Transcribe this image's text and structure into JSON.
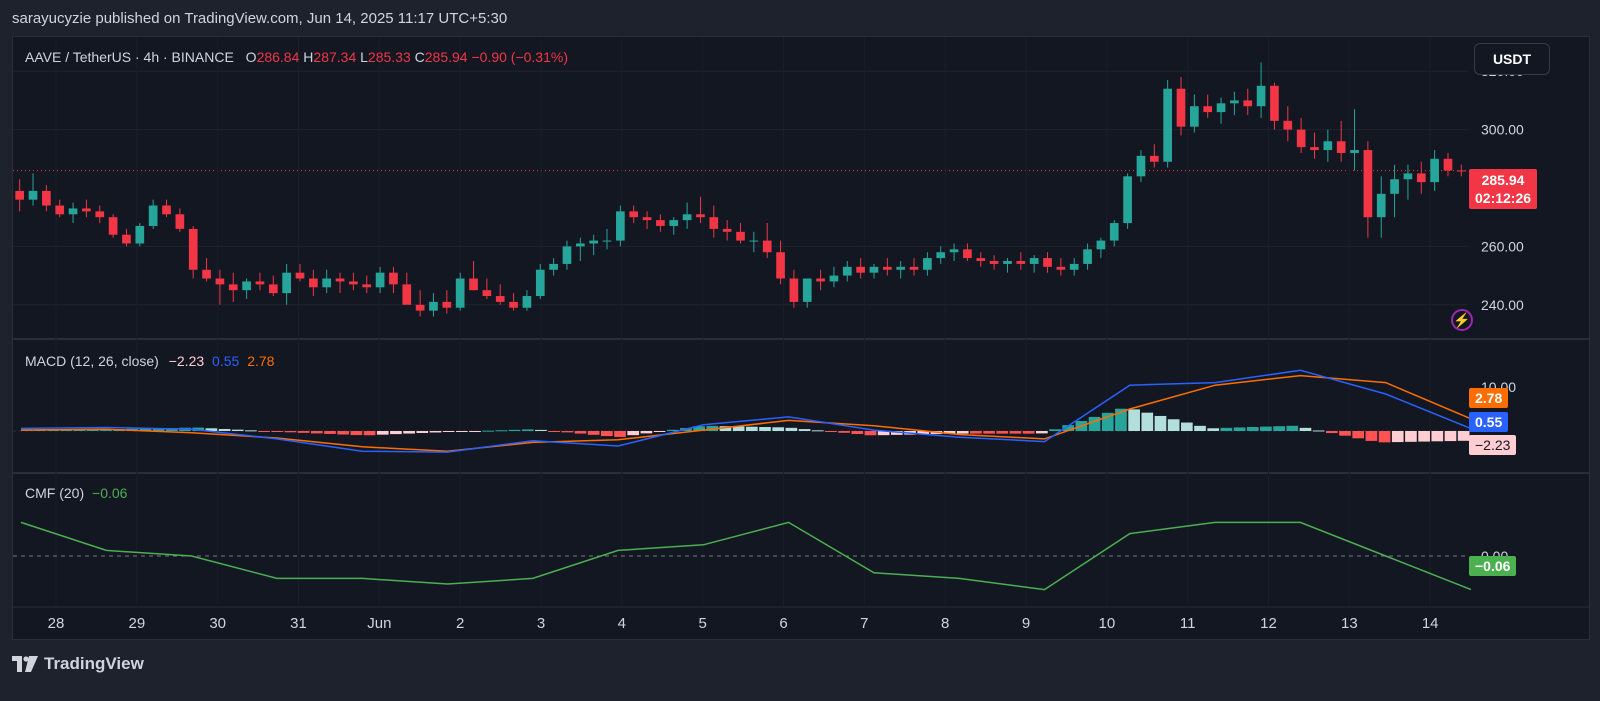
{
  "header": {
    "publisher_line": "sarayucyzie published on TradingView.com, Jun 14, 2025 11:17 UTC+5:30"
  },
  "legend": {
    "symbol": "AAVE / TetherUS · 4h · BINANCE",
    "open_label": "O",
    "open": "286.84",
    "high_label": "H",
    "high": "287.34",
    "low_label": "L",
    "low": "285.33",
    "close_label": "C",
    "close": "285.94",
    "change": "−0.90 (−0.31%)"
  },
  "currency_button": "USDT",
  "price_axis": [
    "320.00",
    "300.00",
    "260.00",
    "240.00"
  ],
  "price_tag": {
    "price": "285.94",
    "countdown": "02:12:26"
  },
  "macd": {
    "label": "MACD (12, 26, close)",
    "hist": "−2.23",
    "macd": "0.55",
    "signal": "2.78",
    "axis": [
      "10.00"
    ],
    "tags": {
      "signal": "2.78",
      "macd": "0.55",
      "hist": "−2.23"
    }
  },
  "cmf": {
    "label": "CMF (20)",
    "value": "−0.06",
    "axis": [
      "0.00"
    ],
    "tag": "−0.06"
  },
  "time_axis": [
    "28",
    "29",
    "30",
    "31",
    "Jun",
    "2",
    "3",
    "4",
    "5",
    "6",
    "7",
    "8",
    "9",
    "10",
    "11",
    "12",
    "13",
    "14"
  ],
  "footer": {
    "brand": "TradingView"
  },
  "colors": {
    "up": "#26a69a",
    "down": "#f23645",
    "macd_line": "#2962ff",
    "signal_line": "#ff6d00",
    "cmf_line": "#4caf50",
    "background": "#131722"
  },
  "chart_data": {
    "type": "candlestick",
    "symbol": "AAVE / TetherUS",
    "interval": "4h",
    "ylim": [
      230,
      330
    ],
    "candles": [
      [
        279,
        283,
        272,
        276
      ],
      [
        276,
        285,
        274,
        279
      ],
      [
        279,
        281,
        272,
        274
      ],
      [
        274,
        276,
        270,
        271
      ],
      [
        271,
        275,
        268,
        273
      ],
      [
        273,
        276,
        270,
        272
      ],
      [
        272,
        274,
        268,
        270
      ],
      [
        270,
        271,
        263,
        264
      ],
      [
        264,
        266,
        260,
        261
      ],
      [
        261,
        268,
        260,
        267
      ],
      [
        267,
        276,
        266,
        274
      ],
      [
        274,
        276,
        270,
        271
      ],
      [
        271,
        273,
        265,
        266
      ],
      [
        266,
        267,
        249,
        252
      ],
      [
        252,
        256,
        248,
        249
      ],
      [
        249,
        252,
        240,
        247
      ],
      [
        247,
        251,
        241,
        245
      ],
      [
        245,
        249,
        242,
        248
      ],
      [
        248,
        251,
        245,
        247
      ],
      [
        247,
        250,
        243,
        244
      ],
      [
        244,
        254,
        240,
        251
      ],
      [
        251,
        254,
        248,
        249
      ],
      [
        249,
        252,
        243,
        246
      ],
      [
        246,
        252,
        244,
        249
      ],
      [
        249,
        251,
        244,
        248
      ],
      [
        248,
        251,
        245,
        247
      ],
      [
        247,
        250,
        244,
        246
      ],
      [
        246,
        253,
        244,
        251
      ],
      [
        251,
        253,
        244,
        247
      ],
      [
        247,
        251,
        241,
        240
      ],
      [
        240,
        245,
        236,
        238
      ],
      [
        238,
        244,
        236,
        241
      ],
      [
        241,
        245,
        237,
        239
      ],
      [
        239,
        251,
        238,
        249
      ],
      [
        249,
        255,
        245,
        245
      ],
      [
        245,
        249,
        242,
        243
      ],
      [
        243,
        247,
        240,
        241
      ],
      [
        241,
        244,
        238,
        239
      ],
      [
        239,
        245,
        238,
        243
      ],
      [
        243,
        254,
        242,
        252
      ],
      [
        252,
        256,
        250,
        254
      ],
      [
        254,
        262,
        252,
        260
      ],
      [
        260,
        263,
        255,
        261
      ],
      [
        261,
        264,
        257,
        262
      ],
      [
        262,
        266,
        259,
        262
      ],
      [
        262,
        274,
        260,
        272
      ],
      [
        272,
        274,
        268,
        270
      ],
      [
        270,
        272,
        266,
        269
      ],
      [
        269,
        271,
        265,
        267
      ],
      [
        267,
        270,
        264,
        269
      ],
      [
        269,
        275,
        266,
        271
      ],
      [
        271,
        277,
        268,
        270
      ],
      [
        270,
        274,
        263,
        266
      ],
      [
        266,
        269,
        262,
        265
      ],
      [
        265,
        268,
        261,
        262
      ],
      [
        262,
        265,
        258,
        262
      ],
      [
        262,
        268,
        256,
        258
      ],
      [
        258,
        262,
        247,
        249
      ],
      [
        249,
        252,
        239,
        241
      ],
      [
        241,
        249,
        239,
        249
      ],
      [
        249,
        252,
        245,
        248
      ],
      [
        248,
        253,
        246,
        250
      ],
      [
        250,
        255,
        248,
        253
      ],
      [
        253,
        256,
        249,
        251
      ],
      [
        251,
        254,
        249,
        253
      ],
      [
        253,
        256,
        250,
        252
      ],
      [
        252,
        255,
        249,
        253
      ],
      [
        253,
        256,
        250,
        252
      ],
      [
        252,
        258,
        250,
        256
      ],
      [
        256,
        260,
        254,
        258
      ],
      [
        258,
        261,
        255,
        259
      ],
      [
        259,
        261,
        255,
        256
      ],
      [
        256,
        258,
        253,
        255
      ],
      [
        255,
        257,
        252,
        254
      ],
      [
        254,
        256,
        251,
        255
      ],
      [
        255,
        258,
        252,
        254
      ],
      [
        254,
        257,
        251,
        256
      ],
      [
        256,
        258,
        251,
        253
      ],
      [
        253,
        256,
        250,
        252
      ],
      [
        252,
        256,
        250,
        254
      ],
      [
        254,
        261,
        252,
        259
      ],
      [
        259,
        263,
        256,
        262
      ],
      [
        262,
        269,
        260,
        268
      ],
      [
        268,
        285,
        266,
        284
      ],
      [
        284,
        293,
        282,
        291
      ],
      [
        291,
        295,
        287,
        289
      ],
      [
        289,
        317,
        287,
        314
      ],
      [
        314,
        318,
        298,
        301
      ],
      [
        301,
        312,
        299,
        308
      ],
      [
        308,
        312,
        304,
        306
      ],
      [
        306,
        311,
        302,
        309
      ],
      [
        309,
        313,
        305,
        310
      ],
      [
        310,
        314,
        305,
        308
      ],
      [
        308,
        323,
        304,
        315
      ],
      [
        315,
        316,
        300,
        303
      ],
      [
        303,
        308,
        296,
        300
      ],
      [
        300,
        304,
        292,
        294
      ],
      [
        294,
        299,
        290,
        293
      ],
      [
        293,
        300,
        289,
        296
      ],
      [
        296,
        303,
        289,
        292
      ],
      [
        292,
        307,
        286,
        293
      ],
      [
        293,
        296,
        263,
        270
      ],
      [
        270,
        284,
        263,
        278
      ],
      [
        278,
        288,
        270,
        283
      ],
      [
        283,
        288,
        276,
        285
      ],
      [
        285,
        289,
        278,
        282
      ],
      [
        282,
        293,
        279,
        290
      ],
      [
        290,
        292,
        284,
        286
      ],
      [
        286,
        288,
        284,
        285.94
      ]
    ],
    "macd": {
      "macd_line": [
        0.6,
        0.8,
        0.4,
        -1.8,
        -4.6,
        -4.8,
        -2.2,
        -3.4,
        1.4,
        3.2,
        0.2,
        -1.4,
        -2.4,
        10.4,
        11.0,
        13.8,
        8.4,
        0.55
      ],
      "signal_line": [
        0.2,
        0.4,
        -0.4,
        -1.6,
        -3.6,
        -4.6,
        -2.6,
        -2.0,
        0.2,
        2.4,
        1.2,
        -0.8,
        -1.8,
        5.0,
        10.4,
        12.6,
        11.0,
        2.78
      ],
      "histogram": [
        0.4,
        0.4,
        0.8,
        -0.2,
        -1.0,
        -0.2,
        0.4,
        -1.4,
        1.2,
        0.8,
        -1.0,
        -0.6,
        -0.6,
        5.4,
        0.6,
        1.2,
        -2.6,
        -2.23
      ]
    },
    "cmf": [
      0.06,
      0.01,
      0.0,
      -0.04,
      -0.04,
      -0.05,
      -0.04,
      0.01,
      0.02,
      0.06,
      -0.03,
      -0.04,
      -0.06,
      0.04,
      0.06,
      0.06,
      0.0,
      -0.06
    ]
  }
}
